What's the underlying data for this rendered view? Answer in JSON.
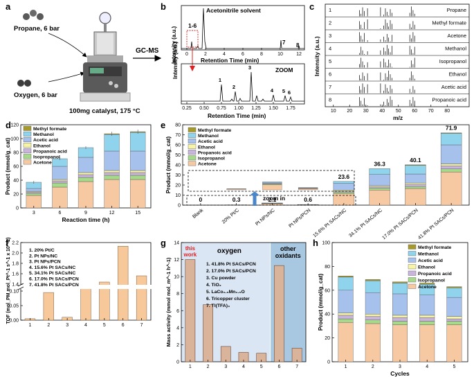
{
  "colors": {
    "methyl_formate": "#a79a2c",
    "methanol": "#8fd4ec",
    "acetic_acid": "#a6c2ec",
    "ethanol": "#f8f4a6",
    "propanoic_acid": "#c9b5dc",
    "isopropanol": "#a7d98a",
    "acetone": "#f6c9a2",
    "zoom_red": "#e02020",
    "arrow_blue": "#4a86c8",
    "bar_tan": "#d9b39a",
    "bar_orange": "#f7c99a",
    "oxygen_bg": "#dbe6f4",
    "oxidant_bg": "#a8c8e2"
  },
  "panel_letters": {
    "a": "a",
    "b": "b",
    "c": "c",
    "d": "d",
    "e": "e",
    "f": "f",
    "g": "g",
    "h": "h"
  },
  "panel_a": {
    "propane": "Propane, 6 bar",
    "oxygen": "Oxygen, 6 bar",
    "catalyst": "100mg catalyst, 175 °C",
    "gcms": "GC-MS"
  },
  "panel_b": {
    "ylabel": "Intensity (a.u.)",
    "xlabel": "Retention Time (min)",
    "solvent": "Acetonitrile solvent",
    "box_label": "1-6",
    "zoom": "ZOOM",
    "top_xticks": [
      "0",
      "2",
      "4",
      "6",
      "8",
      "10",
      "12"
    ],
    "bottom_xticks": [
      "0.25",
      "0.50",
      "0.75",
      "1.00",
      "1.25",
      "1.50",
      "1.75"
    ],
    "peak_labels_top": [
      "7",
      "8"
    ],
    "peak_labels_zoom": [
      "1",
      "2",
      "3",
      "4",
      "5",
      "6"
    ]
  },
  "panel_c": {
    "ylabel": "Intensity (a.u.)",
    "xlabel": "m/z",
    "xticks": [
      "10",
      "20",
      "30",
      "40",
      "50",
      "60",
      "70",
      "80"
    ],
    "rows": [
      {
        "n": "1",
        "name": "Propane"
      },
      {
        "n": "2",
        "name": "Methyl formate"
      },
      {
        "n": "3",
        "name": "Acetone"
      },
      {
        "n": "4",
        "name": "Methanol"
      },
      {
        "n": "5",
        "name": "Isopropanol"
      },
      {
        "n": "6",
        "name": "Ethanol"
      },
      {
        "n": "7",
        "name": "Acetic acid"
      },
      {
        "n": "8",
        "name": "Propanoic acid"
      }
    ]
  },
  "chart_data": [
    {
      "id": "d",
      "type": "bar",
      "stacked": true,
      "title": "",
      "xlabel": "Reaction time (h)",
      "ylabel": "Product (mmol/g_cat)",
      "categories": [
        "3",
        "6",
        "9",
        "12",
        "15"
      ],
      "ylim": [
        0,
        120
      ],
      "yticks": [
        "0",
        "20",
        "40",
        "60",
        "80",
        "100",
        "120"
      ],
      "legend": [
        "Methyl formate",
        "Methanol",
        "Acetic acid",
        "Ethanol",
        "Propanoic acid",
        "Isopropanol",
        "Acetone"
      ],
      "series": [
        {
          "name": "Acetone",
          "values": [
            18,
            30,
            38,
            41,
            41
          ]
        },
        {
          "name": "Isopropanol",
          "values": [
            3,
            6,
            6,
            6,
            6
          ]
        },
        {
          "name": "Propanoic acid",
          "values": [
            2,
            3,
            4,
            4,
            4
          ]
        },
        {
          "name": "Ethanol",
          "values": [
            1,
            2,
            3,
            3,
            3
          ]
        },
        {
          "name": "Acetic acid",
          "values": [
            4,
            19,
            22,
            28,
            28
          ]
        },
        {
          "name": "Methanol",
          "values": [
            9,
            11,
            14,
            24,
            27
          ]
        },
        {
          "name": "Methyl formate",
          "values": [
            0,
            0,
            0,
            1,
            1
          ]
        }
      ],
      "errors": [
        2,
        2,
        2,
        3,
        3
      ]
    },
    {
      "id": "e",
      "type": "bar",
      "stacked": true,
      "xlabel": "",
      "ylabel": "Product (mmol/g_cat)",
      "categories": [
        "Blank",
        "20% Pt/C",
        "Pt NPs/NC",
        "Pt NPs/PCN",
        "15.6% Pt SACs/NC",
        "34.1% Pt SACs/NC",
        "17.0% Pt SACs/PCN",
        "41.8% Pt SACs/PCN"
      ],
      "ylim": [
        0,
        80
      ],
      "yticks": [
        "0",
        "10",
        "20",
        "30",
        "40",
        "50",
        "60",
        "70",
        "80"
      ],
      "totals_label": [
        "0",
        "0.3",
        "2.1",
        "0.6",
        "23.6",
        "36.3",
        "40.1",
        "71.9"
      ],
      "zoom_label": "zoom in",
      "legend": [
        "Methyl formate",
        "Methanol",
        "Acetic acid",
        "Ethanol",
        "Propanoic acid",
        "Isopropanol",
        "Acetone"
      ],
      "series": [
        {
          "name": "Acetone",
          "values": [
            0,
            0.2,
            1.3,
            0.3,
            11.5,
            15,
            16.5,
            33
          ]
        },
        {
          "name": "Isopropanol",
          "values": [
            0,
            0.05,
            0.2,
            0.05,
            1.5,
            2,
            2,
            3
          ]
        },
        {
          "name": "Propanoic acid",
          "values": [
            0,
            0,
            0.1,
            0.05,
            1,
            1.5,
            2,
            3
          ]
        },
        {
          "name": "Ethanol",
          "values": [
            0,
            0,
            0.1,
            0.05,
            1,
            1,
            1.5,
            2
          ]
        },
        {
          "name": "Acetic acid",
          "values": [
            0,
            0.05,
            0.3,
            0.1,
            6.6,
            11,
            9,
            19
          ]
        },
        {
          "name": "Methanol",
          "values": [
            0,
            0,
            0.1,
            0.05,
            2,
            5.8,
            8.6,
            11.4
          ]
        },
        {
          "name": "Methyl formate",
          "values": [
            0,
            0,
            0,
            0,
            0,
            0,
            0.5,
            0.5
          ]
        }
      ]
    },
    {
      "id": "f",
      "type": "bar",
      "xlabel": "",
      "ylabel": "TOF (mol_PM mol_Pt^-1 s^-1 x 10^-2)",
      "categories": [
        "1",
        "2",
        "3",
        "4",
        "5",
        "6",
        "7"
      ],
      "values": [
        0.005,
        0.095,
        0.01,
        1.36,
        1.44,
        2.13,
        1.56
      ],
      "ylim_lower": [
        0,
        0.1
      ],
      "ylim_upper": [
        1.4,
        2.2
      ],
      "yticks_lower": [
        "0.00",
        "0.05",
        "0.10"
      ],
      "yticks_upper": [
        "1.4",
        "1.6",
        "1.8",
        "2.0",
        "2.2"
      ],
      "legend": [
        "1.   20% Pt/C",
        "2.   Pt NPs/NC",
        "3.   Pt NPs/PCN",
        "4.   15.6% Pt SACs/NC",
        "5.   34.1% Pt SACs/NC",
        "6.   17.0% Pt SACs/PCN",
        "7.   41.8% Pt SACs/PCN"
      ]
    },
    {
      "id": "g",
      "type": "bar",
      "xlabel": "",
      "ylabel": "Mass activity (mmol mol_m^-1 h^-1)",
      "categories": [
        "1",
        "2",
        "3",
        "4",
        "5",
        "6",
        "7"
      ],
      "values": [
        12.0,
        6.7,
        1.8,
        1.1,
        1.0,
        11.3,
        1.6
      ],
      "ylim": [
        0,
        14
      ],
      "yticks": [
        "0",
        "2",
        "4",
        "6",
        "8",
        "10",
        "12",
        "14"
      ],
      "this_work": "this work",
      "oxygen_label": "oxygen",
      "other_label": "other oxidants",
      "legend": [
        "1.  41.8% Pt SACs/PCN",
        "2.  17.0% Pt SACs/PCN",
        "3.  Cu powder",
        "4.  TiO₂",
        "5.  LaCo₀.₅Mn₀.₅O",
        "6.  Tricopper cluster",
        "7.  Tl(TFA)₃"
      ]
    },
    {
      "id": "h",
      "type": "bar",
      "stacked": true,
      "xlabel": "Cycles",
      "ylabel": "Product (mmol/g_cat)",
      "categories": [
        "1",
        "2",
        "3",
        "4",
        "5"
      ],
      "ylim": [
        0,
        100
      ],
      "yticks": [
        "0",
        "20",
        "40",
        "60",
        "80",
        "100"
      ],
      "legend": [
        "Methyl formate",
        "Methanol",
        "Acetic acid",
        "Ethanol",
        "Propanoic acid",
        "Isopropanol",
        "Acetone"
      ],
      "series": [
        {
          "name": "Acetone",
          "values": [
            33,
            32,
            31,
            31,
            31
          ]
        },
        {
          "name": "Isopropanol",
          "values": [
            3,
            3,
            3,
            3,
            3
          ]
        },
        {
          "name": "Propanoic acid",
          "values": [
            3,
            3,
            3,
            3,
            2
          ]
        },
        {
          "name": "Ethanol",
          "values": [
            2,
            2,
            2,
            2,
            2
          ]
        },
        {
          "name": "Acetic acid",
          "values": [
            19,
            18,
            18,
            17,
            16
          ]
        },
        {
          "name": "Methanol",
          "values": [
            11,
            10,
            9,
            9,
            8
          ]
        },
        {
          "name": "Methyl formate",
          "values": [
            1,
            1,
            1,
            1,
            1
          ]
        }
      ]
    }
  ]
}
